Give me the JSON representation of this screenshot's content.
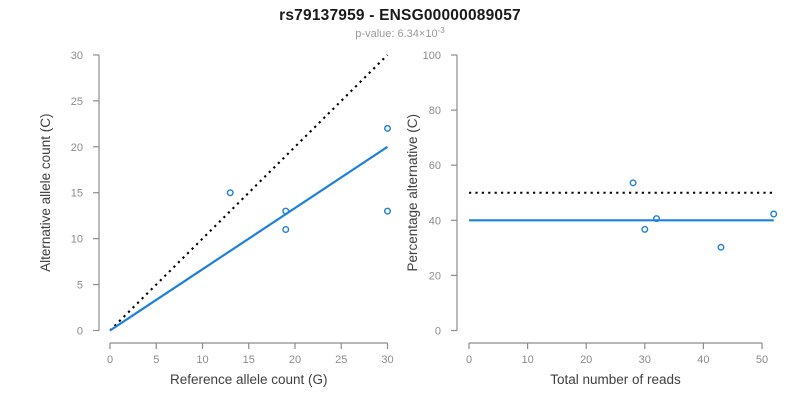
{
  "header": {
    "title": "rs79137959 - ENSG00000089057",
    "pvalue_text": "p-value: 6.34×10",
    "pvalue_exponent": "-3"
  },
  "colors": {
    "accent_blue": "#1E80D8",
    "dotted_black": "#000000",
    "axis_gray": "#8c8c8c",
    "tick_label_gray": "#8c8c8c",
    "axis_title_dark": "#404040",
    "title_black": "#1a1a1a",
    "subtitle_gray": "#999999"
  },
  "chart_data": [
    {
      "type": "scatter",
      "title": "rs79137959 - ENSG00000089057",
      "subtitle": "p-value: 6.34×10^-3",
      "xlabel": "Reference allele count (G)",
      "ylabel": "Alternative allele count (C)",
      "xlim": [
        0,
        30
      ],
      "ylim": [
        0,
        30
      ],
      "xticks": [
        0,
        5,
        10,
        15,
        20,
        25,
        30
      ],
      "yticks": [
        0,
        5,
        10,
        15,
        20,
        25,
        30
      ],
      "grid": false,
      "legend": null,
      "points": [
        [
          13,
          15
        ],
        [
          19,
          13
        ],
        [
          19,
          11
        ],
        [
          30,
          22
        ],
        [
          30,
          13
        ]
      ],
      "lines": [
        {
          "name": "identity-line",
          "style": "dotted",
          "color": "#000000",
          "from": [
            0,
            0
          ],
          "to": [
            30,
            30
          ]
        },
        {
          "name": "regression-line",
          "style": "solid",
          "color": "#1E80D8",
          "from": [
            0,
            0
          ],
          "to": [
            30,
            20
          ]
        }
      ]
    },
    {
      "type": "scatter",
      "xlabel": "Total number of reads",
      "ylabel": "Percentage alternative (C)",
      "xlim": [
        0,
        52
      ],
      "ylim": [
        0,
        100
      ],
      "xticks": [
        0,
        10,
        20,
        30,
        40,
        50
      ],
      "yticks": [
        0,
        20,
        40,
        60,
        80,
        100
      ],
      "grid": false,
      "legend": null,
      "points": [
        [
          28,
          53.6
        ],
        [
          32,
          40.6
        ],
        [
          30,
          36.7
        ],
        [
          43,
          30.2
        ],
        [
          52,
          42.3
        ]
      ],
      "lines": [
        {
          "name": "fifty-percent-line",
          "style": "dotted",
          "color": "#000000",
          "y": 50
        },
        {
          "name": "mean-percentage-line",
          "style": "solid",
          "color": "#1E80D8",
          "y": 40
        }
      ]
    }
  ]
}
